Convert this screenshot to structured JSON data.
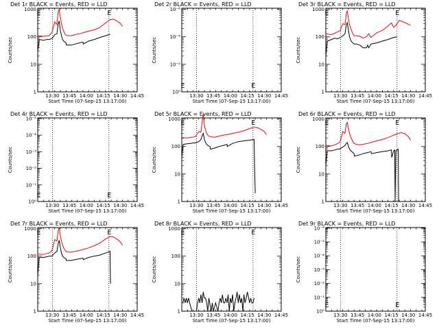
{
  "chart_data": [
    {
      "title": "Det 1r BLACK = Events, RED = LLD",
      "ylabel": "Counts/sec",
      "xlabel": "Start Time (07-Sep-15 13:17:00)",
      "type": "line",
      "y_scale": "log",
      "ytick_labels": [
        "1",
        "10",
        "100",
        "1000"
      ],
      "xtick_labels": [
        "13:30",
        "13:45",
        "14:00",
        "14:15",
        "14:30",
        "14:45"
      ],
      "markers": [
        "E",
        "E"
      ],
      "series": [
        {
          "name": "RED = LLD",
          "color": "#ff0000",
          "x": [
            0,
            5,
            8,
            10,
            12,
            13,
            15,
            17,
            18,
            19,
            20,
            21,
            22,
            23,
            24,
            25,
            27,
            30,
            33,
            37,
            40,
            45,
            50,
            55,
            60,
            64,
            67,
            70,
            73,
            75
          ],
          "y": [
            110,
            105,
            110,
            110,
            135,
            160,
            350,
            280,
            800,
            1000,
            500,
            300,
            200,
            160,
            130,
            115,
            110,
            110,
            120,
            130,
            140,
            160,
            180,
            220,
            320,
            420,
            440,
            380,
            310,
            240
          ]
        },
        {
          "name": "BLACK = Events",
          "color": "#000000",
          "x": [
            0,
            1,
            1.3,
            5,
            8,
            10,
            12,
            13,
            15,
            17,
            18,
            19,
            20,
            21,
            22,
            23,
            24,
            25,
            25.3,
            30,
            33,
            37,
            40,
            40.3,
            45,
            50,
            55,
            60,
            64
          ],
          "y": [
            30,
            55,
            80,
            75,
            80,
            80,
            85,
            90,
            120,
            130,
            280,
            380,
            170,
            110,
            80,
            70,
            65,
            60,
            50,
            50,
            55,
            60,
            65,
            55,
            70,
            80,
            95,
            110,
            125
          ]
        }
      ]
    },
    {
      "title": "Det 2r BLACK = Events, RED = LLD",
      "ylabel": "Counts/sec",
      "xlabel": "Start Time (07-Sep-15 13:17:00)",
      "type": "line",
      "y_scale": "log",
      "ytick_labels": [
        "10⁰",
        "10⁻²",
        "10⁻⁴",
        "10⁻⁶"
      ],
      "xtick_labels": [
        "13:30",
        "13:45",
        "14:00",
        "14:15",
        "14:30",
        "14:45"
      ],
      "markers": [
        "E",
        "E"
      ],
      "series": []
    },
    {
      "title": "Det 3r BLACK = Events, RED = LLD",
      "ylabel": "Counts/sec",
      "xlabel": "Start Time (07-Sep-15 13:17:00)",
      "type": "line",
      "y_scale": "log",
      "ytick_labels": [
        "1",
        "10",
        "100",
        "1000"
      ],
      "xtick_labels": [
        "13:30",
        "13:45",
        "14:00",
        "14:15",
        "14:30",
        "14:45"
      ],
      "markers": [
        "E",
        "E"
      ],
      "series": [
        {
          "name": "RED = LLD",
          "color": "#ff0000",
          "x": [
            0,
            5,
            8,
            10,
            12,
            13,
            15,
            17,
            18,
            19,
            20,
            21,
            22,
            23,
            24,
            25,
            27,
            30,
            33,
            36,
            38,
            40,
            45,
            50,
            55,
            58,
            60,
            62,
            65,
            70,
            75
          ],
          "y": [
            130,
            120,
            135,
            150,
            160,
            180,
            300,
            280,
            650,
            900,
            450,
            280,
            200,
            160,
            130,
            110,
            110,
            105,
            90,
            100,
            130,
            95,
            140,
            170,
            250,
            320,
            220,
            260,
            400,
            330,
            260
          ]
        },
        {
          "name": "BLACK = Events",
          "color": "#000000",
          "x": [
            0,
            1,
            1.3,
            5,
            8,
            10,
            12,
            13,
            15,
            17,
            18,
            19,
            20,
            21,
            22,
            23,
            24,
            25,
            27,
            30,
            33,
            36,
            37,
            38,
            40,
            45,
            50,
            55,
            60,
            63
          ],
          "y": [
            20,
            50,
            70,
            80,
            90,
            85,
            90,
            95,
            110,
            130,
            260,
            330,
            170,
            100,
            75,
            65,
            60,
            55,
            55,
            50,
            40,
            40,
            50,
            40,
            55,
            60,
            70,
            80,
            95,
            100
          ]
        }
      ]
    },
    {
      "title": "Det 4r BLACK = Events, RED = LLD",
      "ylabel": "Counts/sec",
      "xlabel": "Start Time (07-Sep-15 13:17:00)",
      "type": "line",
      "y_scale": "log",
      "ytick_labels": [
        "10⁰",
        "10⁻¹",
        "10⁻²",
        "10⁻³",
        "10⁻⁴",
        "10⁻⁵"
      ],
      "xtick_labels": [
        "13:30",
        "13:45",
        "14:00",
        "14:15",
        "14:30",
        "14:45"
      ],
      "markers": [
        "E",
        "E"
      ],
      "series": []
    },
    {
      "title": "Det 5r BLACK = Events, RED = LLD",
      "ylabel": "Counts/sec",
      "xlabel": "Start Time (07-Sep-15 13:17:00)",
      "type": "line",
      "y_scale": "log",
      "ytick_labels": [
        "1",
        "10",
        "100",
        "1000"
      ],
      "xtick_labels": [
        "13:30",
        "13:45",
        "14:00",
        "14:15",
        "14:30",
        "14:45"
      ],
      "markers": [
        "E",
        "E"
      ],
      "series": [
        {
          "name": "RED = LLD",
          "color": "#ff0000",
          "x": [
            0,
            5,
            8,
            10,
            12,
            13,
            15,
            17,
            18,
            19,
            20,
            21,
            22,
            23,
            24,
            25,
            27,
            30,
            33,
            37,
            40,
            45,
            50,
            55,
            60,
            64,
            67,
            70,
            73,
            75
          ],
          "y": [
            210,
            205,
            215,
            220,
            230,
            260,
            350,
            330,
            800,
            1500,
            600,
            400,
            300,
            260,
            240,
            230,
            220,
            220,
            240,
            260,
            270,
            300,
            330,
            370,
            450,
            500,
            480,
            420,
            350,
            270
          ]
        },
        {
          "name": "BLACK = Events",
          "color": "#000000",
          "x": [
            0,
            1,
            1.3,
            5,
            8,
            10,
            12,
            13,
            15,
            17,
            18,
            19,
            20,
            21,
            22,
            23,
            24,
            25,
            25.3,
            30,
            33,
            37,
            40,
            40.3,
            45,
            50,
            55,
            60,
            64,
            64.4,
            65
          ],
          "y": [
            40,
            100,
            120,
            125,
            130,
            135,
            135,
            140,
            150,
            180,
            250,
            300,
            180,
            140,
            120,
            110,
            105,
            100,
            80,
            90,
            100,
            110,
            120,
            100,
            130,
            150,
            160,
            170,
            180,
            20,
            2
          ]
        }
      ]
    },
    {
      "title": "Det 6r BLACK = Events, RED = LLD",
      "ylabel": "Counts/sec",
      "xlabel": "Start Time (07-Sep-15 13:17:00)",
      "type": "line",
      "y_scale": "log",
      "ytick_labels": [
        "1",
        "10",
        "100",
        "1000"
      ],
      "xtick_labels": [
        "13:30",
        "13:45",
        "14:00",
        "14:15",
        "14:30",
        "14:45"
      ],
      "markers": [
        "E",
        "E"
      ],
      "series": [
        {
          "name": "RED = LLD",
          "color": "#ff0000",
          "x": [
            0,
            5,
            8,
            10,
            12,
            13,
            15,
            17,
            18,
            19,
            20,
            21,
            22,
            23,
            24,
            25,
            27,
            30,
            33,
            37,
            40,
            45,
            50,
            55,
            60,
            64,
            67,
            70,
            73,
            75
          ],
          "y": [
            110,
            105,
            115,
            125,
            140,
            160,
            350,
            300,
            650,
            750,
            450,
            300,
            220,
            180,
            150,
            130,
            120,
            115,
            120,
            130,
            140,
            160,
            180,
            210,
            260,
            300,
            320,
            290,
            230,
            170
          ]
        },
        {
          "name": "BLACK = Events",
          "color": "#000000",
          "x": [
            0,
            1,
            1.3,
            5,
            8,
            10,
            12,
            13,
            15,
            17,
            18,
            19,
            20,
            21,
            22,
            23,
            24,
            25,
            25.3,
            30,
            33,
            37,
            40,
            40.3,
            45,
            50,
            55,
            58,
            58.3,
            60,
            61,
            61.3,
            62,
            64,
            64.4,
            65
          ],
          "y": [
            20,
            50,
            70,
            70,
            75,
            80,
            80,
            85,
            95,
            110,
            130,
            140,
            100,
            80,
            70,
            65,
            60,
            55,
            45,
            50,
            55,
            60,
            65,
            55,
            60,
            65,
            70,
            75,
            40,
            70,
            75,
            1,
            70,
            80,
            1,
            1
          ]
        }
      ]
    },
    {
      "title": "Det 7r BLACK = Events, RED = LLD",
      "ylabel": "Counts/sec",
      "xlabel": "Start Time (07-Sep-15 13:17:00)",
      "type": "line",
      "y_scale": "log",
      "ytick_labels": [
        "1",
        "10",
        "100",
        "1000"
      ],
      "xtick_labels": [
        "13:30",
        "13:45",
        "14:00",
        "14:15",
        "14:30",
        "14:45"
      ],
      "markers": [
        "E",
        "E"
      ],
      "series": [
        {
          "name": "RED = LLD",
          "color": "#ff0000",
          "x": [
            0,
            5,
            8,
            10,
            12,
            13,
            15,
            17,
            18,
            19,
            20,
            21,
            22,
            23,
            24,
            25,
            27,
            30,
            33,
            37,
            40,
            45,
            50,
            55,
            60,
            64,
            67,
            70,
            73,
            75
          ],
          "y": [
            120,
            115,
            125,
            130,
            150,
            180,
            400,
            350,
            800,
            1100,
            550,
            350,
            250,
            200,
            170,
            150,
            140,
            140,
            150,
            160,
            175,
            200,
            240,
            300,
            420,
            520,
            500,
            420,
            330,
            250
          ]
        },
        {
          "name": "BLACK = Events",
          "color": "#000000",
          "x": [
            0,
            1,
            1.3,
            5,
            8,
            10,
            12,
            13,
            15,
            17,
            18,
            19,
            20,
            21,
            22,
            23,
            24,
            25,
            25.3,
            30,
            33,
            37,
            40,
            40.3,
            45,
            50,
            55,
            60,
            64,
            64.4
          ],
          "y": [
            20,
            60,
            90,
            90,
            95,
            100,
            100,
            105,
            130,
            150,
            280,
            380,
            200,
            130,
            100,
            90,
            85,
            80,
            70,
            70,
            75,
            80,
            85,
            75,
            90,
            100,
            110,
            130,
            150,
            10
          ]
        }
      ]
    },
    {
      "title": "Det 8r BLACK = Events, RED = LLD",
      "ylabel": "Counts/sec",
      "xlabel": "Start Time (07-Sep-15 13:17:00)",
      "type": "line",
      "y_scale": "log",
      "ytick_labels": [
        "1",
        "10",
        "100",
        "1000"
      ],
      "xtick_labels": [
        "13:30",
        "13:45",
        "14:00",
        "14:15",
        "14:30",
        "14:45"
      ],
      "markers": [
        "E",
        "E"
      ],
      "series": [
        {
          "name": "BLACK = Events",
          "color": "#000000",
          "x": [
            1,
            2,
            3,
            4,
            5,
            6,
            7,
            9,
            11,
            13,
            14,
            15,
            16,
            17,
            18,
            19,
            20,
            21,
            22,
            23,
            24,
            26,
            27,
            28,
            30,
            32,
            33,
            34,
            35,
            36,
            37,
            38,
            39,
            40,
            41,
            42,
            43,
            44,
            45,
            46,
            47,
            48,
            49,
            50,
            51,
            52,
            53,
            54,
            55,
            56,
            57,
            58,
            60,
            61,
            62,
            63,
            64
          ],
          "y": [
            2,
            3,
            2,
            3,
            2,
            3,
            2,
            1,
            1,
            1,
            2,
            3,
            2,
            4,
            2,
            5,
            3,
            3,
            2,
            1,
            3,
            1,
            2,
            1,
            2,
            1,
            2,
            3,
            2,
            4,
            2,
            2,
            3,
            2,
            4,
            1,
            3,
            2,
            4,
            1,
            2,
            3,
            5,
            2,
            4,
            2,
            3,
            1,
            4,
            2,
            3,
            5,
            2,
            3,
            2,
            2,
            3
          ]
        }
      ]
    },
    {
      "title": "Det 9r BLACK = Events, RED = LLD",
      "ylabel": "Counts/sec",
      "xlabel": "Start Time (07-Sep-15 13:17:00)",
      "type": "line",
      "y_scale": "log",
      "ytick_labels": [
        "10⁰",
        "10⁻¹",
        "10⁻²",
        "10⁻³",
        "10⁻⁴",
        "10⁻⁵",
        "10⁻⁶"
      ],
      "xtick_labels": [
        "13:30",
        "13:45",
        "14:00",
        "14:15",
        "14:30",
        "14:45"
      ],
      "markers": [
        "E",
        "E"
      ],
      "series": []
    }
  ]
}
